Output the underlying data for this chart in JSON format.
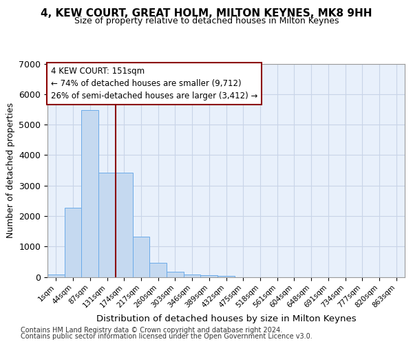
{
  "title": "4, KEW COURT, GREAT HOLM, MILTON KEYNES, MK8 9HH",
  "subtitle": "Size of property relative to detached houses in Milton Keynes",
  "xlabel": "Distribution of detached houses by size in Milton Keynes",
  "ylabel": "Number of detached properties",
  "bar_color": "#c5d9f0",
  "bar_edge_color": "#6aaae8",
  "vline_color": "#8b0000",
  "annotation_title": "4 KEW COURT: 151sqm",
  "annotation_line1": "← 74% of detached houses are smaller (9,712)",
  "annotation_line2": "26% of semi-detached houses are larger (3,412) →",
  "categories": [
    "1sqm",
    "44sqm",
    "87sqm",
    "131sqm",
    "174sqm",
    "217sqm",
    "260sqm",
    "303sqm",
    "346sqm",
    "389sqm",
    "432sqm",
    "475sqm",
    "518sqm",
    "561sqm",
    "604sqm",
    "648sqm",
    "691sqm",
    "734sqm",
    "777sqm",
    "820sqm",
    "863sqm"
  ],
  "values": [
    75,
    2280,
    5470,
    3430,
    3430,
    1310,
    460,
    165,
    90,
    60,
    30,
    0,
    0,
    0,
    0,
    0,
    0,
    0,
    0,
    0,
    0
  ],
  "ylim": [
    0,
    7000
  ],
  "yticks": [
    0,
    1000,
    2000,
    3000,
    4000,
    5000,
    6000,
    7000
  ],
  "vline_index": 3.5,
  "footer1": "Contains HM Land Registry data © Crown copyright and database right 2024.",
  "footer2": "Contains public sector information licensed under the Open Government Licence v3.0.",
  "background_color": "#e8f0fb",
  "fig_background": "#ffffff",
  "grid_color": "#c8d4e8"
}
